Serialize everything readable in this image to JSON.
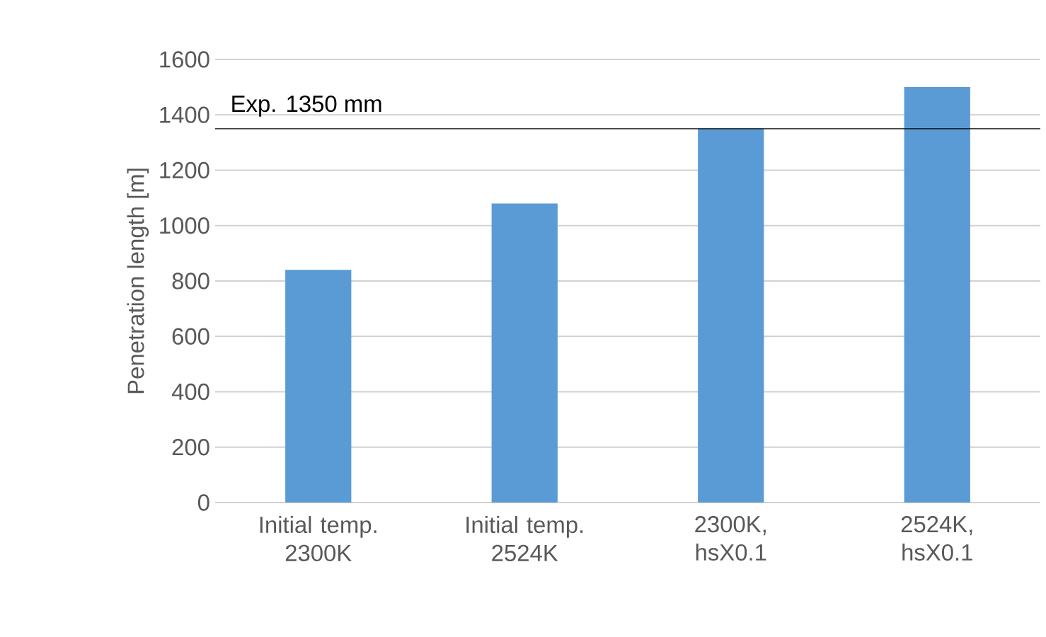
{
  "chart_data": {
    "type": "bar",
    "ylabel": "Penetration length [m]",
    "categories": [
      "Initial temp. 2300K",
      "Initial temp. 2524K",
      "2300K, hsX0.1",
      "2524K, hsX0.1"
    ],
    "values": [
      840,
      1080,
      1350,
      1500
    ],
    "color": "#5b9bd5",
    "ylim": [
      0,
      1600
    ],
    "yticks": [
      0,
      200,
      400,
      600,
      800,
      1000,
      1200,
      1400,
      1600
    ],
    "grid": "y",
    "ref_lines": [
      {
        "axis": "y",
        "value": 1350,
        "label": "Exp. 1350 mm",
        "color": "#000000"
      }
    ]
  }
}
